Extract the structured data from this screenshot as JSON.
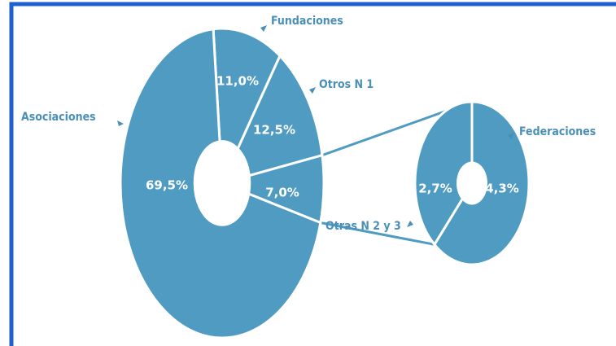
{
  "chart_data": {
    "type": "pie-of-pie",
    "categories": [
      "Asociaciones",
      "Fundaciones",
      "Otros N 1",
      null
    ],
    "values": [
      69.5,
      11.0,
      12.5,
      7.0
    ],
    "value_labels": [
      "69,5%",
      "11,0%",
      "12,5%",
      "7,0%"
    ],
    "color": "#4f9bc1",
    "secondary": {
      "categories": [
        "Otras N 2 y 3",
        "Federaciones"
      ],
      "values": [
        2.7,
        4.3
      ],
      "value_labels": [
        "2,7%",
        "4,3%"
      ]
    }
  }
}
